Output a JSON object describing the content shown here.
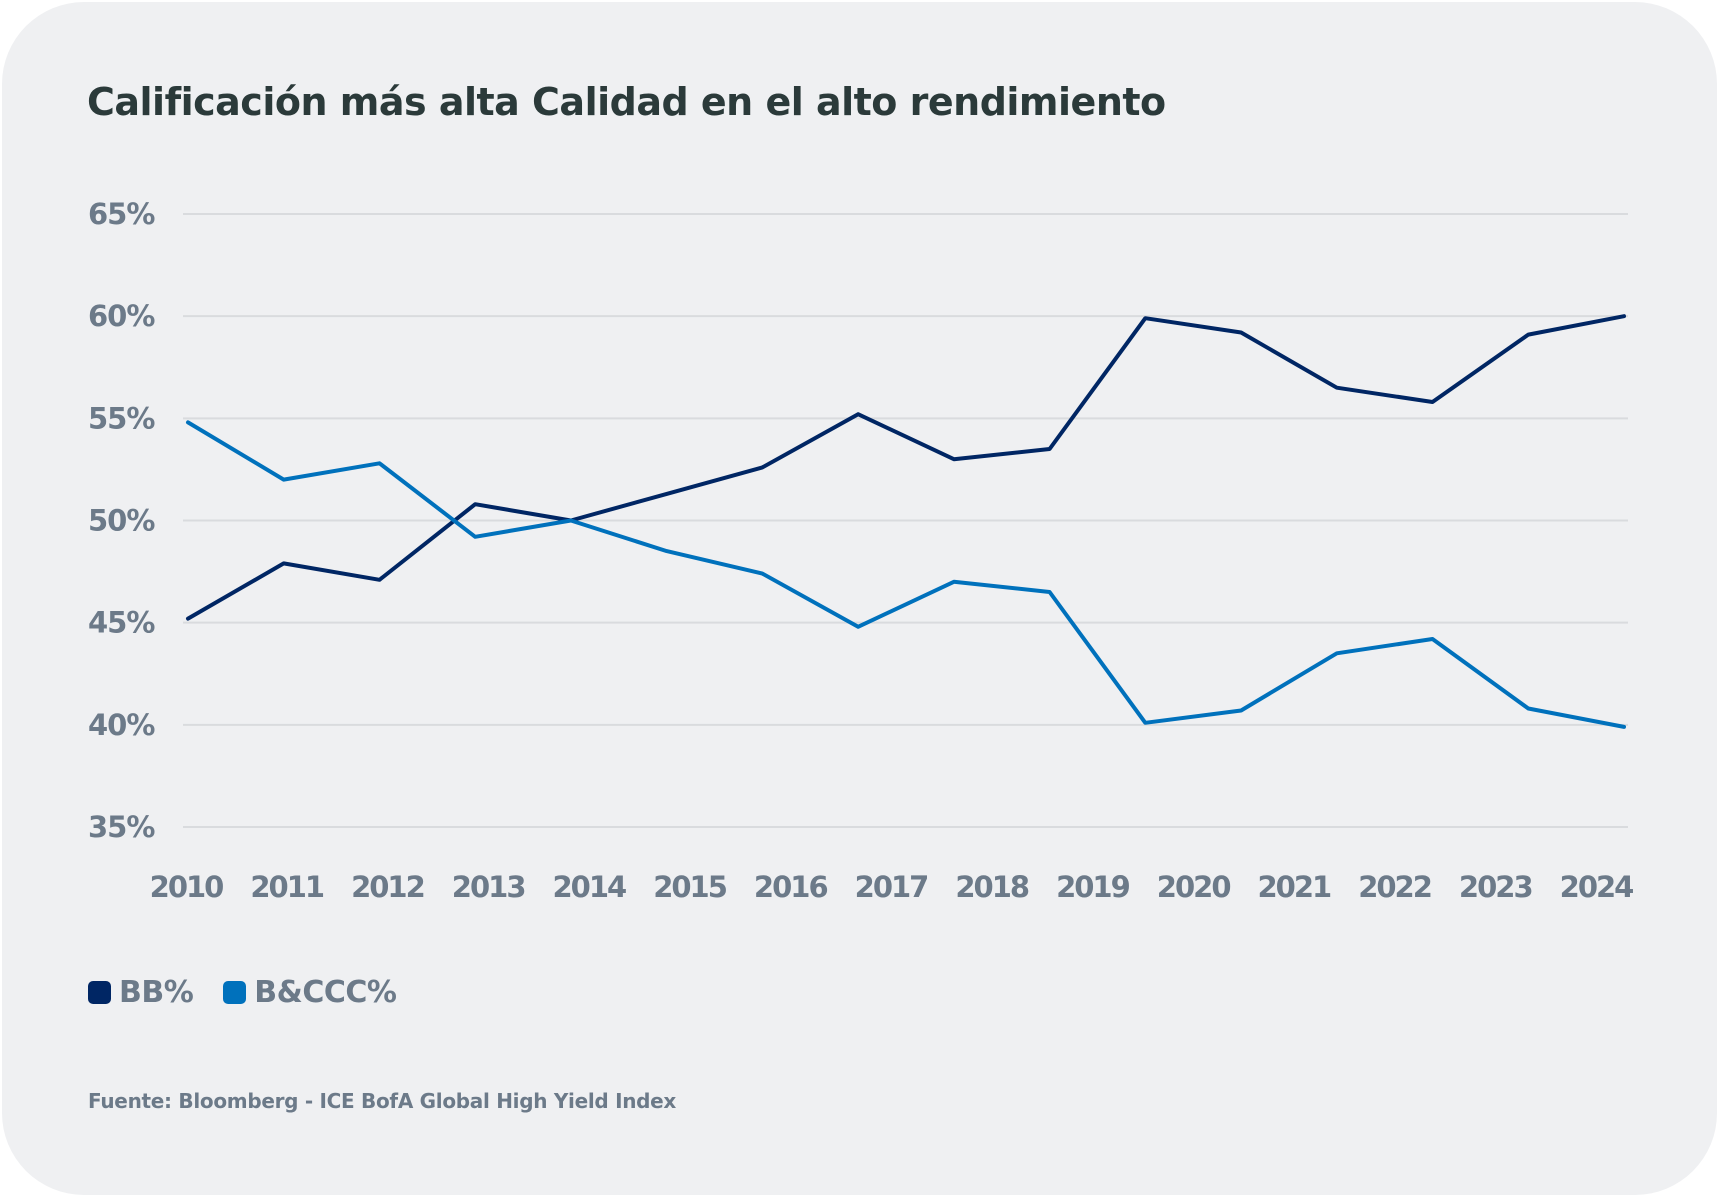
{
  "title": "Calificación más alta Calidad en el alto rendimiento",
  "source": "Fuente: Bloomberg - ICE BofA Global High Yield Index",
  "colors": {
    "bb": "#002664",
    "bccc": "#0071bc",
    "background": "#eff0f2",
    "text": "#6c7a89",
    "title": "#2b3a3a",
    "grid": "#d9dbde"
  },
  "legend": [
    {
      "label": "BB%",
      "color": "#002664"
    },
    {
      "label": "B&CCC%",
      "color": "#0071bc"
    }
  ],
  "chart_data": {
    "type": "line",
    "title": "Calificación más alta Calidad en el alto rendimiento",
    "xlabel": "",
    "ylabel": "",
    "x_tick_labels": [
      "2010",
      "2011",
      "2012",
      "2013",
      "2014",
      "2015",
      "2016",
      "2017",
      "2018",
      "2019",
      "2020",
      "2021",
      "2022",
      "2023",
      "2024"
    ],
    "y_tick_labels": [
      "65%",
      "60%",
      "55%",
      "50%",
      "45%",
      "40%",
      "35%"
    ],
    "y_ticks": [
      65,
      60,
      55,
      50,
      45,
      40,
      35
    ],
    "ylim": [
      35,
      65
    ],
    "grid": true,
    "legend_position": "bottom-left",
    "point_count": 16,
    "series": [
      {
        "name": "BB%",
        "color": "#002664",
        "values": [
          45.2,
          47.9,
          47.1,
          50.8,
          50.0,
          51.3,
          52.6,
          55.2,
          53.0,
          53.5,
          59.9,
          59.2,
          56.5,
          55.8,
          59.1,
          60.0
        ]
      },
      {
        "name": "B&CCC%",
        "color": "#0071bc",
        "values": [
          54.8,
          52.0,
          52.8,
          49.2,
          50.0,
          48.5,
          47.4,
          44.8,
          47.0,
          46.5,
          40.1,
          40.7,
          43.5,
          44.2,
          40.8,
          39.9
        ]
      }
    ]
  }
}
